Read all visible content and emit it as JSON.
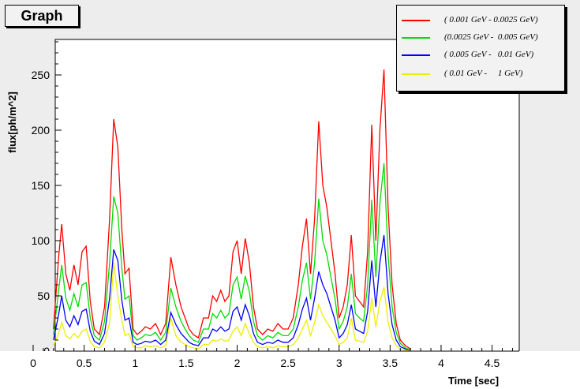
{
  "title": "Graph",
  "chart_data": {
    "type": "line",
    "xlabel": "Time [sec]",
    "ylabel": "flux[ph/m^2]",
    "xlim": [
      0,
      4.7
    ],
    "ylim": [
      0,
      285
    ],
    "x_ticks": [
      "0",
      "0.5",
      "1",
      "1.5",
      "2",
      "2.5",
      "3",
      "3.5",
      "4",
      "4.5"
    ],
    "y_ticks": [
      "0",
      "50",
      "100",
      "150",
      "200",
      "250"
    ],
    "x_tick_values": [
      0,
      0.5,
      1,
      1.5,
      2,
      2.5,
      3,
      3.5,
      4,
      4.5
    ],
    "y_tick_values": [
      0,
      50,
      100,
      150,
      200,
      250
    ],
    "legend_position": "top-right",
    "x": [
      0.2,
      0.25,
      0.28,
      0.32,
      0.36,
      0.4,
      0.44,
      0.48,
      0.52,
      0.56,
      0.6,
      0.65,
      0.7,
      0.75,
      0.79,
      0.83,
      0.87,
      0.9,
      0.94,
      0.98,
      1.02,
      1.06,
      1.1,
      1.15,
      1.2,
      1.25,
      1.3,
      1.35,
      1.4,
      1.45,
      1.49,
      1.53,
      1.57,
      1.62,
      1.67,
      1.72,
      1.76,
      1.8,
      1.84,
      1.88,
      1.92,
      1.96,
      2.0,
      2.04,
      2.08,
      2.12,
      2.16,
      2.2,
      2.25,
      2.3,
      2.35,
      2.4,
      2.45,
      2.5,
      2.55,
      2.6,
      2.64,
      2.68,
      2.72,
      2.76,
      2.8,
      2.84,
      2.88,
      2.92,
      2.96,
      3.0,
      3.04,
      3.08,
      3.12,
      3.16,
      3.2,
      3.24,
      3.28,
      3.32,
      3.36,
      3.4,
      3.44,
      3.48,
      3.52,
      3.56,
      3.6,
      3.65,
      3.7
    ],
    "series": [
      {
        "name": "( 0.001 GeV - 0.0025 GeV)",
        "color": "#ff0000",
        "values": [
          20,
          85,
          115,
          70,
          55,
          78,
          60,
          90,
          95,
          45,
          20,
          15,
          40,
          120,
          210,
          185,
          110,
          70,
          75,
          20,
          15,
          18,
          22,
          20,
          25,
          15,
          25,
          85,
          60,
          40,
          30,
          20,
          15,
          12,
          30,
          30,
          50,
          45,
          55,
          45,
          50,
          90,
          100,
          70,
          102,
          80,
          40,
          20,
          15,
          20,
          18,
          25,
          20,
          20,
          30,
          60,
          95,
          120,
          70,
          120,
          208,
          150,
          130,
          100,
          70,
          30,
          40,
          60,
          105,
          50,
          45,
          40,
          90,
          205,
          100,
          200,
          255,
          130,
          60,
          25,
          10,
          5,
          2
        ]
      },
      {
        "name": "(0.0025 GeV -  0.005 GeV)",
        "color": "#00dd00",
        "values": [
          15,
          55,
          78,
          48,
          37,
          52,
          40,
          60,
          62,
          30,
          14,
          10,
          27,
          80,
          140,
          125,
          75,
          47,
          50,
          14,
          10,
          12,
          15,
          14,
          17,
          10,
          17,
          57,
          40,
          27,
          20,
          14,
          10,
          8,
          20,
          20,
          34,
          30,
          37,
          30,
          34,
          60,
          67,
          47,
          68,
          54,
          27,
          14,
          10,
          14,
          12,
          17,
          14,
          14,
          20,
          40,
          64,
          80,
          47,
          80,
          138,
          100,
          87,
          67,
          47,
          20,
          27,
          40,
          70,
          34,
          30,
          27,
          60,
          137,
          67,
          134,
          170,
          87,
          40,
          17,
          7,
          3,
          1
        ]
      },
      {
        "name": "( 0.005 GeV -   0.01 GeV)",
        "color": "#0000ff",
        "values": [
          10,
          33,
          50,
          28,
          22,
          32,
          24,
          36,
          38,
          18,
          9,
          6,
          16,
          48,
          92,
          82,
          46,
          28,
          30,
          8,
          6,
          7,
          9,
          8,
          10,
          6,
          10,
          35,
          24,
          16,
          12,
          8,
          6,
          5,
          12,
          12,
          20,
          18,
          22,
          18,
          20,
          36,
          40,
          28,
          42,
          32,
          16,
          8,
          6,
          8,
          7,
          10,
          8,
          8,
          12,
          24,
          38,
          48,
          28,
          48,
          72,
          60,
          52,
          40,
          28,
          12,
          16,
          24,
          42,
          20,
          18,
          16,
          36,
          82,
          40,
          80,
          105,
          52,
          24,
          10,
          4,
          2,
          1
        ]
      },
      {
        "name": "( 0.01 GeV -     1 GeV)",
        "color": "#eeee00",
        "values": [
          5,
          16,
          26,
          14,
          11,
          16,
          12,
          18,
          20,
          9,
          4,
          3,
          8,
          26,
          80,
          50,
          28,
          14,
          16,
          4,
          3,
          3,
          5,
          4,
          5,
          3,
          5,
          30,
          14,
          8,
          6,
          4,
          3,
          2,
          6,
          6,
          10,
          9,
          11,
          9,
          10,
          18,
          22,
          14,
          25,
          16,
          8,
          4,
          3,
          4,
          3,
          5,
          4,
          4,
          6,
          12,
          20,
          28,
          14,
          26,
          42,
          32,
          26,
          20,
          14,
          6,
          8,
          12,
          30,
          10,
          9,
          8,
          18,
          48,
          22,
          45,
          58,
          26,
          12,
          5,
          2,
          1,
          0
        ]
      }
    ]
  }
}
